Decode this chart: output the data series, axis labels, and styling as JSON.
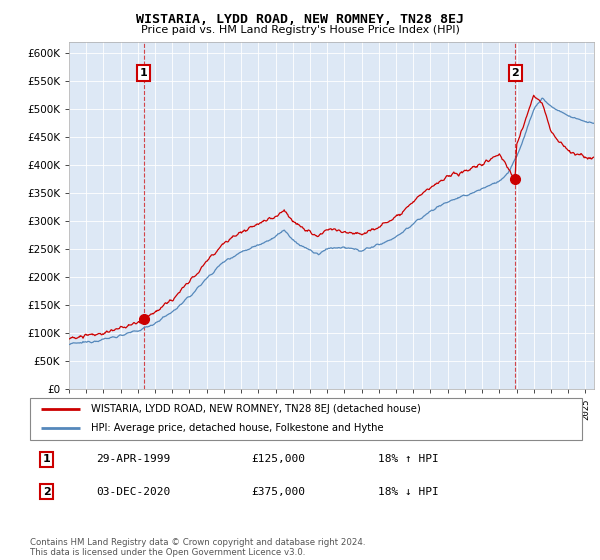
{
  "title": "WISTARIA, LYDD ROAD, NEW ROMNEY, TN28 8EJ",
  "subtitle": "Price paid vs. HM Land Registry's House Price Index (HPI)",
  "legend_line1": "WISTARIA, LYDD ROAD, NEW ROMNEY, TN28 8EJ (detached house)",
  "legend_line2": "HPI: Average price, detached house, Folkestone and Hythe",
  "annotation1_label": "1",
  "annotation1_date": "29-APR-1999",
  "annotation1_price": "£125,000",
  "annotation1_hpi": "18% ↑ HPI",
  "annotation2_label": "2",
  "annotation2_date": "03-DEC-2020",
  "annotation2_price": "£375,000",
  "annotation2_hpi": "18% ↓ HPI",
  "copyright": "Contains HM Land Registry data © Crown copyright and database right 2024.\nThis data is licensed under the Open Government Licence v3.0.",
  "red_color": "#cc0000",
  "blue_color": "#5588bb",
  "plot_bg": "#dde8f5",
  "ylim": [
    0,
    620000
  ],
  "xlim_start": 1995.0,
  "xlim_end": 2025.5,
  "point1_x": 1999.33,
  "point1_y": 125000,
  "point2_x": 2020.92,
  "point2_y": 375000
}
